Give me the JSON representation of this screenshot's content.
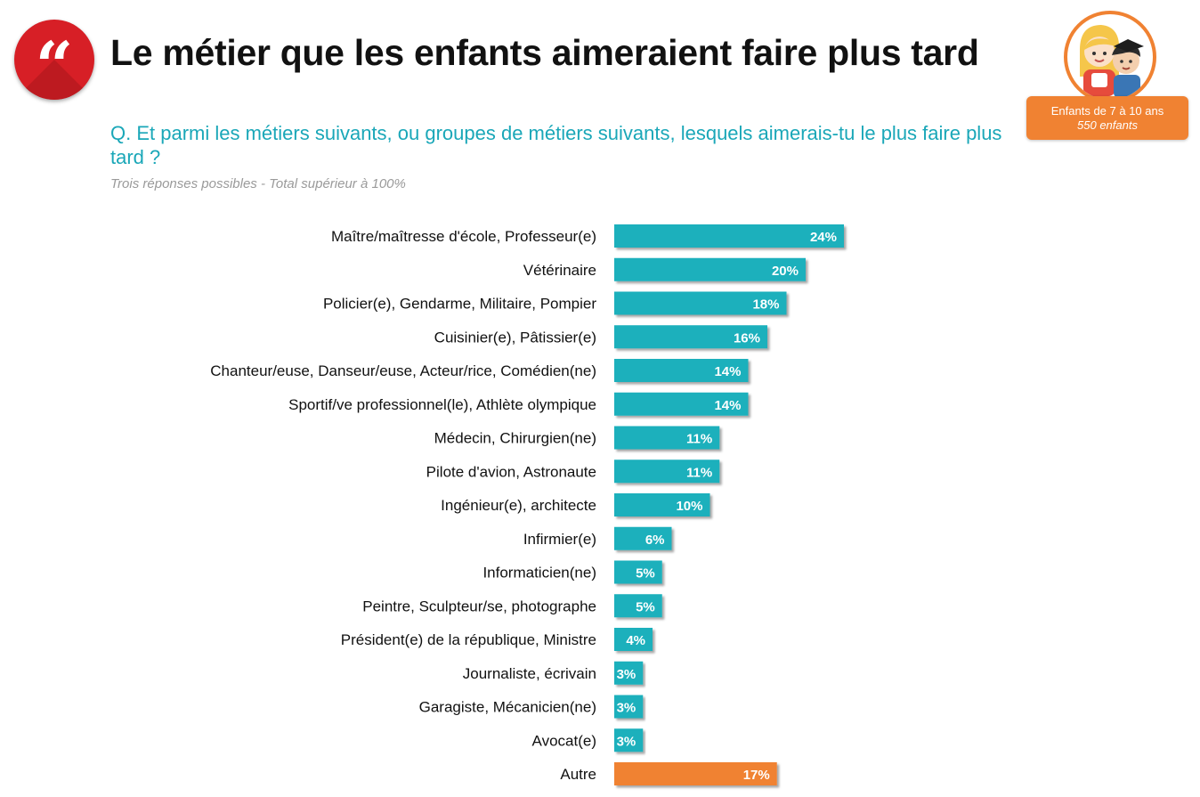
{
  "header": {
    "title": "Le métier que les enfants aimeraient faire plus tard",
    "question": "Q. Et parmi les métiers suivants, ou groupes de métiers suivants, lesquels aimerais-tu le plus faire plus tard ?",
    "note": "Trois réponses possibles - Total supérieur à 100%",
    "quote_icon": "quote-icon",
    "avatar_icon": "children-avatar-icon"
  },
  "sample": {
    "line1": "Enfants de 7 à 10 ans",
    "line2": "550 enfants"
  },
  "colors": {
    "bar": "#1cb0bc",
    "highlight": "#f08232",
    "accent_red": "#d71f26",
    "question_text": "#1aa7b8"
  },
  "chart_data": {
    "type": "bar",
    "orientation": "horizontal",
    "categories": [
      "Maître/maîtresse d'école, Professeur(e)",
      "Vétérinaire",
      "Policier(e), Gendarme, Militaire, Pompier",
      "Cuisinier(e), Pâtissier(e)",
      "Chanteur/euse, Danseur/euse, Acteur/rice, Comédien(ne)",
      "Sportif/ve professionnel(le), Athlète olympique",
      "Médecin, Chirurgien(ne)",
      "Pilote d'avion, Astronaute",
      "Ingénieur(e), architecte",
      "Infirmier(e)",
      "Informaticien(ne)",
      "Peintre, Sculpteur/se, photographe",
      "Président(e) de la république, Ministre",
      "Journaliste, écrivain",
      "Garagiste, Mécanicien(ne)",
      "Avocat(e)",
      "Autre"
    ],
    "values": [
      24,
      20,
      18,
      16,
      14,
      14,
      11,
      11,
      10,
      6,
      5,
      5,
      4,
      3,
      3,
      3,
      17
    ],
    "labels": [
      "24%",
      "20%",
      "18%",
      "16%",
      "14%",
      "14%",
      "11%",
      "11%",
      "10%",
      "6%",
      "5%",
      "5%",
      "4%",
      "3%",
      "3%",
      "3%",
      "17%"
    ],
    "highlight_categories": [
      "Autre"
    ],
    "unit": "%",
    "xlim": [
      0,
      30
    ],
    "grid": false,
    "legend": "none"
  }
}
